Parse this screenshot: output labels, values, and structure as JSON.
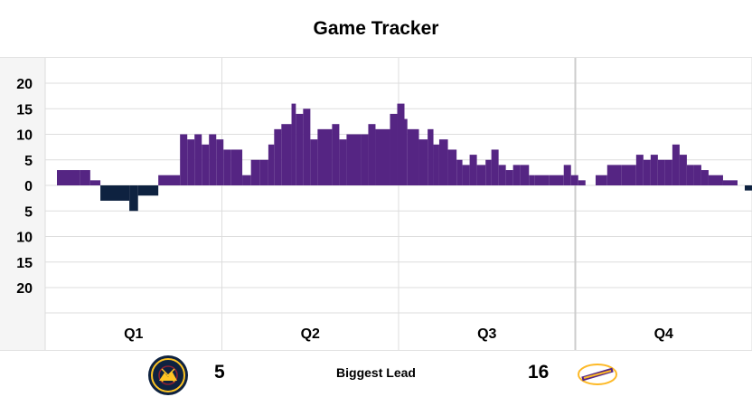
{
  "title": "Game Tracker",
  "footer": {
    "home_biggest_lead": "5",
    "away_biggest_lead": "16",
    "biggest_lead_label": "Biggest Lead"
  },
  "teams": {
    "left": {
      "logo": "nuggets-logo",
      "color": "#0e2240",
      "logo_text": "DENVER NUGGETS"
    },
    "right": {
      "logo": "lakers-logo",
      "color": "#552583",
      "logo_text": "LAKERS"
    }
  },
  "colors": {
    "lakers": "#552583",
    "nuggets": "#0e2240",
    "grid": "#dddddd",
    "label_bg": "#f5f5f5"
  },
  "chart_data": {
    "type": "area",
    "title": "Game Tracker",
    "xlabel": "",
    "ylabel": "",
    "x_categories": [
      "Q1",
      "Q2",
      "Q3",
      "Q4"
    ],
    "y_tick_labels": [
      "20",
      "15",
      "10",
      "5",
      "0",
      "5",
      "10",
      "15",
      "20"
    ],
    "ylim": [
      -20,
      20
    ],
    "grid": true,
    "series": [
      {
        "x_game_minutes": [
          0,
          1.6,
          2.3,
          3.0,
          5.0,
          5.6,
          7.0,
          8.5,
          9.0,
          9.5,
          10.0,
          10.5,
          11.0,
          11.5,
          12.0,
          12.8,
          13.4,
          14.0,
          14.6,
          15.0,
          15.5,
          16.2,
          16.5,
          17.0,
          17.5,
          18.0,
          19.0,
          19.5,
          20.0,
          21.0,
          21.5,
          22.0,
          23.0,
          23.5,
          24.0,
          24.2,
          25.0,
          25.6,
          26.0,
          26.4,
          27.0,
          27.6,
          28.0,
          28.5,
          29.0,
          29.6,
          30.0,
          30.5,
          31.0,
          31.5,
          32.0,
          32.6,
          33.0,
          34.0,
          35.0,
          35.5,
          36.0,
          36.5,
          37.2,
          38.0,
          39.0,
          40.0,
          40.5,
          41.0,
          41.5,
          42.0,
          42.5,
          43.0,
          43.5,
          44.0,
          44.5,
          45.0,
          46.0,
          47.0,
          47.5,
          48.0
        ],
        "lead": [
          3,
          3,
          1,
          -3,
          -5,
          -2,
          2,
          10,
          9,
          10,
          8,
          10,
          9,
          7,
          7,
          2,
          5,
          5,
          8,
          11,
          12,
          16,
          14,
          15,
          9,
          11,
          12,
          9,
          10,
          10,
          12,
          11,
          14,
          16,
          13,
          11,
          9,
          11,
          8,
          9,
          7,
          5,
          4,
          6,
          4,
          5,
          7,
          4,
          3,
          4,
          4,
          2,
          2,
          2,
          4,
          2,
          1,
          0,
          2,
          4,
          4,
          6,
          5,
          6,
          5,
          5,
          8,
          6,
          4,
          4,
          3,
          2,
          1,
          0,
          -1,
          -1
        ]
      }
    ],
    "notes": "Positive values are a Lakers lead (drawn above the zero line in purple); negative values are a Nuggets lead (drawn below in navy)."
  }
}
